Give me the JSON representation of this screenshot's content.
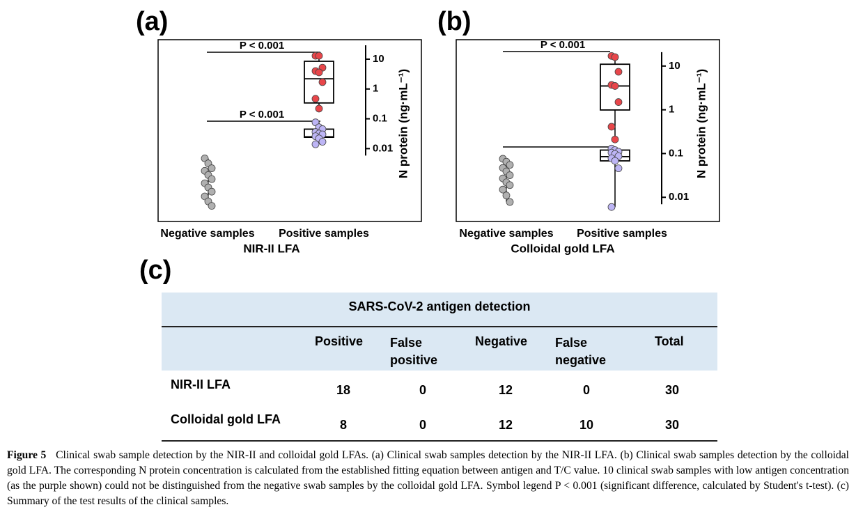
{
  "panel_labels": [
    "(a)",
    "(b)",
    "(c)"
  ],
  "chart_data": [
    {
      "type": "box",
      "log_scale": true,
      "categories": [
        "Negative samples",
        "Positive samples"
      ],
      "xlabel": "NIR-II LFA",
      "ylabel": "N protein (ng·mL⁻¹)",
      "ylim": [
        3.6e-05,
        45
      ],
      "yticks": [
        10,
        1,
        0.1,
        0.01
      ],
      "ytick_colors": [
        "#d0103a",
        "#d0103a",
        "#a020f0",
        "#a020f0"
      ],
      "annotations": [
        "P < 0.001",
        "P < 0.001"
      ],
      "series": [
        {
          "category": 0,
          "color": "#b0b0b0",
          "values": [
            0.0047,
            0.0032,
            0.0022,
            0.0018,
            0.0013,
            0.00095,
            0.00069,
            0.0005,
            0.00036,
            0.00025,
            0.00017,
            0.00012
          ]
        },
        {
          "category": 1,
          "color": "#e8464a",
          "values": [
            13,
            13,
            5.2,
            4.0,
            3.6,
            1.7,
            0.47,
            0.22
          ],
          "box": {
            "whisker_low": 0.22,
            "q1": 0.34,
            "median": 2.2,
            "q3": 8.5,
            "whisker_high": 13
          }
        },
        {
          "category": 1,
          "color": "#bdb5f5",
          "values": [
            0.076,
            0.052,
            0.045,
            0.036,
            0.032,
            0.03,
            0.026,
            0.022,
            0.017,
            0.014
          ],
          "box": {
            "whisker_low": 0.014,
            "q1": 0.024,
            "median": 0.025,
            "q3": 0.045,
            "whisker_high": 0.076
          }
        }
      ]
    },
    {
      "type": "box",
      "log_scale": true,
      "categories": [
        "Negative samples",
        "Positive samples"
      ],
      "xlabel": "Colloidal gold LFA",
      "ylabel": "N protein (ng·mL⁻¹)",
      "ylim": [
        0.0028,
        40
      ],
      "yticks": [
        10,
        1,
        0.1,
        0.01
      ],
      "ytick_colors": [
        "#000000",
        "#000000",
        "#000000",
        "#000000"
      ],
      "annotations": [
        "P < 0.001"
      ],
      "series": [
        {
          "category": 0,
          "color": "#b0b0b0",
          "values": [
            0.076,
            0.065,
            0.055,
            0.047,
            0.039,
            0.032,
            0.027,
            0.022,
            0.019,
            0.015,
            0.011,
            0.0078
          ]
        },
        {
          "category": 1,
          "color": "#e8464a",
          "values": [
            17,
            16,
            7.4,
            3.7,
            3.5,
            1.5,
            0.41,
            0.21
          ],
          "box": {
            "whisker_low": 0.21,
            "q1": 0.99,
            "median": 3.5,
            "q3": 11,
            "whisker_high": 17
          }
        },
        {
          "category": 1,
          "color": "#bdb5f5",
          "values": [
            0.13,
            0.12,
            0.11,
            0.105,
            0.098,
            0.087,
            0.078,
            0.068,
            0.046,
            0.006
          ],
          "box": {
            "whisker_low": 0.006,
            "q1": 0.068,
            "median": 0.085,
            "q3": 0.12,
            "whisker_high": 0.13
          }
        }
      ]
    }
  ],
  "table": {
    "title": "SARS-CoV-2 antigen detection",
    "columns": [
      "Positive",
      "False positive",
      "Negative",
      "False negative",
      "Total"
    ],
    "rows": [
      [
        "NIR-II LFA",
        18,
        0,
        12,
        0,
        30
      ],
      [
        "Colloidal gold LFA",
        8,
        0,
        12,
        10,
        30
      ]
    ]
  },
  "caption": {
    "label": "Figure 5",
    "text": "Clinical swab sample detection by the NIR-II and colloidal gold LFAs. (a) Clinical swab samples detection by the NIR-II LFA. (b) Clinical swab samples detection by the colloidal gold LFA. The corresponding N protein concentration is calculated from the established fitting equation between antigen and T/C value. 10 clinical swab samples with low antigen concentration (as the purple shown) could not be distinguished from the negative swab samples by the colloidal gold LFA. Symbol legend P < 0.001 (significant difference, calculated by Student's t-test). (c) Summary of the test results of the clinical samples."
  }
}
